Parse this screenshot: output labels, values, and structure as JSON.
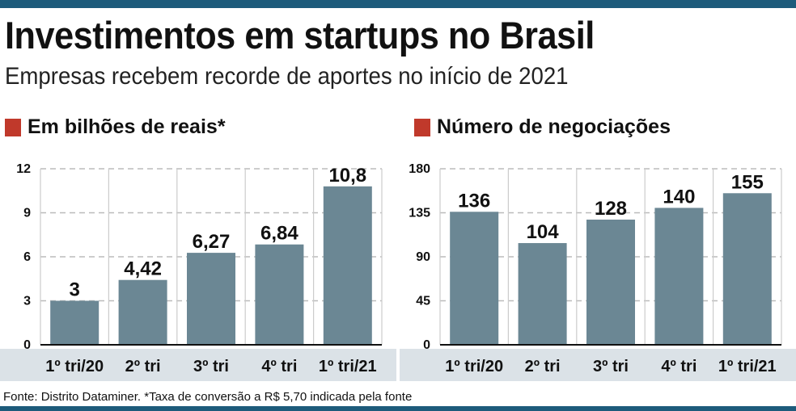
{
  "header": {
    "title": "Investimentos em startups no Brasil",
    "subtitle": "Empresas recebem recorde de aportes no início de 2021"
  },
  "footer": "Fonte: Distrito Dataminer. *Taxa de conversão a R$ 5,70 indicada pela fonte",
  "colors": {
    "bar": "#6b8794",
    "band": "#dbe2e7",
    "accent": "#1d5b7b",
    "marker": "#c0392b"
  },
  "chart_data": [
    {
      "type": "bar",
      "title": "Em bilhões de reais*",
      "categories": [
        "1º tri/20",
        "2º tri",
        "3º tri",
        "4º tri",
        "1º tri/21"
      ],
      "values": [
        3,
        4.42,
        6.27,
        6.84,
        10.8
      ],
      "value_labels": [
        "3",
        "4,42",
        "6,27",
        "6,84",
        "10,8"
      ],
      "yticks": [
        "0",
        "3",
        "6",
        "9",
        "12"
      ],
      "ylim": [
        0,
        12
      ]
    },
    {
      "type": "bar",
      "title": "Número de negociações",
      "categories": [
        "1º tri/20",
        "2º tri",
        "3º tri",
        "4º tri",
        "1º tri/21"
      ],
      "values": [
        136,
        104,
        128,
        140,
        155
      ],
      "value_labels": [
        "136",
        "104",
        "128",
        "140",
        "155"
      ],
      "yticks": [
        "0",
        "45",
        "90",
        "135",
        "180"
      ],
      "ylim": [
        0,
        180
      ]
    }
  ]
}
